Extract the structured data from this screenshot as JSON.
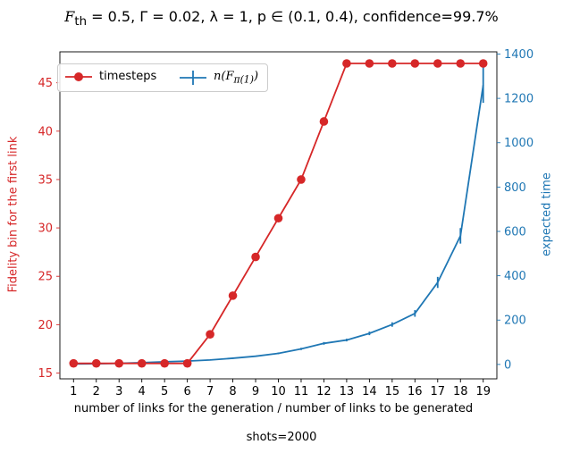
{
  "chart_data": {
    "type": "line",
    "title_parts": {
      "f_th": "F",
      "f_th_sub": "th",
      "rest": " = 0.5, Γ = 0.02, λ = 1, p ∈ (0.1, 0.4), confidence=99.7%"
    },
    "xlabel": "number of links for the generation / number of links to be generated",
    "ylabel_left": "Fidelity bin for the first link",
    "ylabel_right": "expected time",
    "footer": "shots=2000",
    "x": [
      1,
      2,
      3,
      4,
      5,
      6,
      7,
      8,
      9,
      10,
      11,
      12,
      13,
      14,
      15,
      16,
      17,
      18,
      19
    ],
    "x_ticks": [
      "1",
      "2",
      "3",
      "4",
      "5",
      "6",
      "7",
      "8",
      "9",
      "10",
      "11",
      "12",
      "13",
      "14",
      "15",
      "16",
      "17",
      "18",
      "19"
    ],
    "y_left_ticks": [
      "15",
      "20",
      "25",
      "30",
      "35",
      "40",
      "45"
    ],
    "y_right_ticks": [
      "0",
      "200",
      "400",
      "600",
      "800",
      "1000",
      "1200",
      "1400"
    ],
    "ylim_left": [
      14.4,
      48.2
    ],
    "ylim_right": [
      -65,
      1410
    ],
    "xlim": [
      0.4,
      19.6
    ],
    "legend_position": "upper-left",
    "series": [
      {
        "name": "timesteps",
        "axis": "left",
        "color": "#d62728",
        "marker": "circle",
        "values": [
          16,
          16,
          16,
          16,
          16,
          16,
          19,
          23,
          27,
          31,
          35,
          41,
          47,
          47,
          47,
          47,
          47,
          47,
          47
        ]
      },
      {
        "name_main": "n(F",
        "name_sub": "π(1)",
        "name_end": ")",
        "axis": "right",
        "color": "#1f77b4",
        "marker": "errorbar",
        "values": [
          2,
          3,
          5,
          8,
          12,
          15,
          20,
          28,
          37,
          50,
          70,
          95,
          110,
          140,
          180,
          230,
          370,
          580,
          1260
        ],
        "errors": [
          2,
          2,
          2,
          2,
          2,
          2,
          2,
          3,
          3,
          4,
          5,
          6,
          6,
          8,
          10,
          15,
          25,
          35,
          80
        ]
      }
    ]
  }
}
